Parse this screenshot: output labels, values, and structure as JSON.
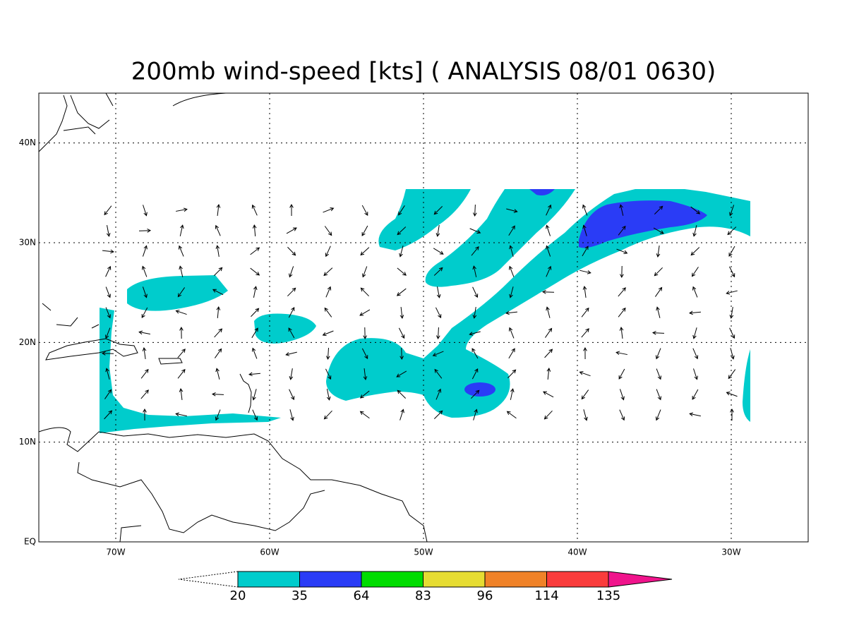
{
  "chart_data": {
    "type": "map",
    "title": "200mb wind-speed [kts] ( ANALYSIS 08/01 0630)",
    "xlim": [
      -75,
      -25
    ],
    "ylim": [
      0,
      45
    ],
    "xticks": [
      {
        "value": -70,
        "label": "70W"
      },
      {
        "value": -60,
        "label": "60W"
      },
      {
        "value": -50,
        "label": "50W"
      },
      {
        "value": -40,
        "label": "40W"
      },
      {
        "value": -30,
        "label": "30W"
      }
    ],
    "yticks": [
      {
        "value": 0,
        "label": "EQ"
      },
      {
        "value": 10,
        "label": "10N"
      },
      {
        "value": 20,
        "label": "20N"
      },
      {
        "value": 30,
        "label": "30N"
      },
      {
        "value": 40,
        "label": "40N"
      }
    ],
    "grid": true,
    "colorbar": {
      "levels": [
        20,
        35,
        64,
        83,
        96,
        114,
        135
      ],
      "colors": [
        "#00cccc",
        "#2a3cf6",
        "#00dc00",
        "#e6dc32",
        "#f08228",
        "#fa3c3c",
        "#f0148c"
      ]
    }
  }
}
